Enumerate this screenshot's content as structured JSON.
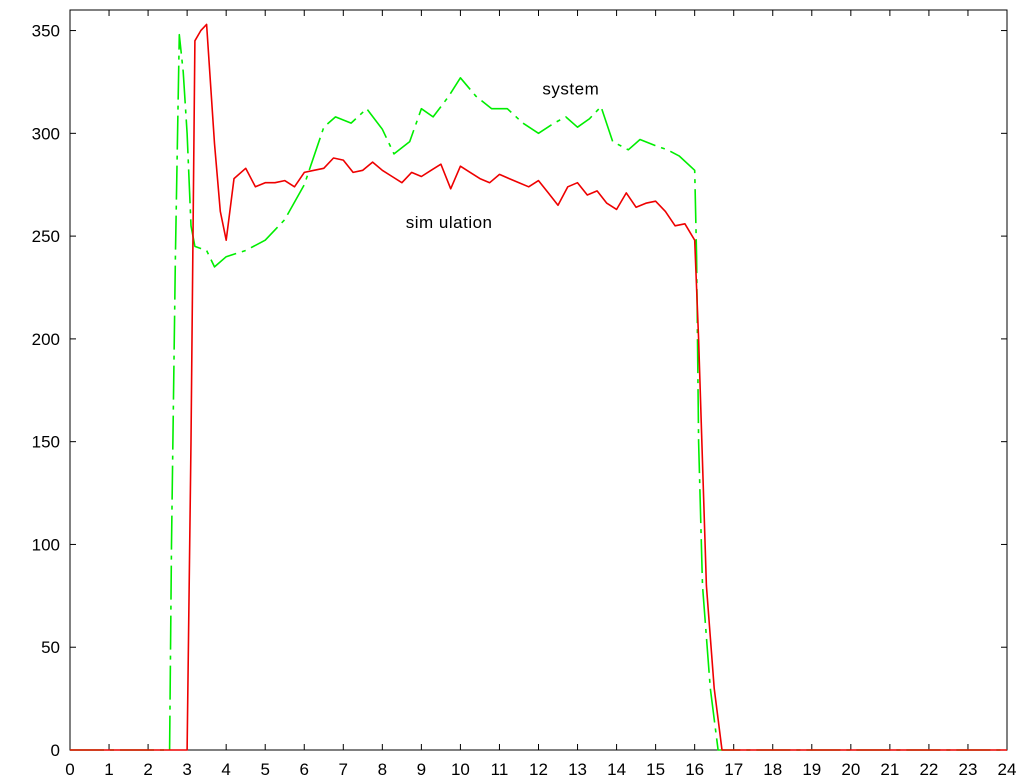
{
  "chart_data": {
    "type": "line",
    "title": "",
    "xlabel": "",
    "ylabel": "",
    "xlim": [
      0,
      24
    ],
    "ylim": [
      0,
      360
    ],
    "xticks": [
      0,
      1,
      2,
      3,
      4,
      5,
      6,
      7,
      8,
      9,
      10,
      11,
      12,
      13,
      14,
      15,
      16,
      17,
      18,
      19,
      20,
      21,
      22,
      23,
      24
    ],
    "yticks": [
      0,
      50,
      100,
      150,
      200,
      250,
      300,
      350
    ],
    "grid": false,
    "legend": "none",
    "annotations": [
      {
        "text": "system",
        "series": "system",
        "x": 12.1,
        "y": 319
      },
      {
        "text": "sim ulation",
        "series": "simulation",
        "x": 8.6,
        "y": 254
      }
    ],
    "series": [
      {
        "name": "system",
        "color": "#00ee00",
        "dash": "dash-dot",
        "points": [
          [
            0,
            0
          ],
          [
            2.4,
            0
          ],
          [
            2.55,
            0
          ],
          [
            2.6,
            100
          ],
          [
            2.7,
            240
          ],
          [
            2.8,
            348
          ],
          [
            2.9,
            330
          ],
          [
            3.0,
            300
          ],
          [
            3.1,
            255
          ],
          [
            3.2,
            245
          ],
          [
            3.5,
            243
          ],
          [
            3.7,
            235
          ],
          [
            4.0,
            240
          ],
          [
            4.5,
            243
          ],
          [
            5.0,
            248
          ],
          [
            5.5,
            258
          ],
          [
            6.0,
            275
          ],
          [
            6.5,
            303
          ],
          [
            6.8,
            308
          ],
          [
            7.2,
            305
          ],
          [
            7.6,
            312
          ],
          [
            8.0,
            302
          ],
          [
            8.3,
            290
          ],
          [
            8.7,
            296
          ],
          [
            9.0,
            312
          ],
          [
            9.3,
            308
          ],
          [
            9.7,
            318
          ],
          [
            10.0,
            327
          ],
          [
            10.4,
            318
          ],
          [
            10.8,
            312
          ],
          [
            11.2,
            312
          ],
          [
            11.6,
            305
          ],
          [
            12.0,
            300
          ],
          [
            12.4,
            305
          ],
          [
            12.7,
            308
          ],
          [
            13.0,
            303
          ],
          [
            13.3,
            307
          ],
          [
            13.6,
            313
          ],
          [
            13.9,
            296
          ],
          [
            14.3,
            292
          ],
          [
            14.6,
            297
          ],
          [
            15.0,
            294
          ],
          [
            15.3,
            292
          ],
          [
            15.6,
            289
          ],
          [
            16.0,
            282
          ],
          [
            16.05,
            240
          ],
          [
            16.1,
            150
          ],
          [
            16.2,
            80
          ],
          [
            16.4,
            30
          ],
          [
            16.6,
            0
          ],
          [
            24,
            0
          ]
        ]
      },
      {
        "name": "simulation",
        "color": "#ee0000",
        "dash": "solid",
        "points": [
          [
            0,
            0
          ],
          [
            2.9,
            0
          ],
          [
            3.0,
            0
          ],
          [
            3.1,
            150
          ],
          [
            3.2,
            345
          ],
          [
            3.35,
            350
          ],
          [
            3.5,
            353
          ],
          [
            3.7,
            295
          ],
          [
            3.85,
            262
          ],
          [
            4.0,
            248
          ],
          [
            4.2,
            278
          ],
          [
            4.5,
            283
          ],
          [
            4.75,
            274
          ],
          [
            5.0,
            276
          ],
          [
            5.25,
            276
          ],
          [
            5.5,
            277
          ],
          [
            5.75,
            274
          ],
          [
            6.0,
            281
          ],
          [
            6.25,
            282
          ],
          [
            6.5,
            283
          ],
          [
            6.75,
            288
          ],
          [
            7.0,
            287
          ],
          [
            7.25,
            281
          ],
          [
            7.5,
            282
          ],
          [
            7.75,
            286
          ],
          [
            8.0,
            282
          ],
          [
            8.25,
            279
          ],
          [
            8.5,
            276
          ],
          [
            8.75,
            281
          ],
          [
            9.0,
            279
          ],
          [
            9.25,
            282
          ],
          [
            9.5,
            285
          ],
          [
            9.75,
            273
          ],
          [
            10.0,
            284
          ],
          [
            10.25,
            281
          ],
          [
            10.5,
            278
          ],
          [
            10.75,
            276
          ],
          [
            11.0,
            280
          ],
          [
            11.25,
            278
          ],
          [
            11.5,
            276
          ],
          [
            11.75,
            274
          ],
          [
            12.0,
            277
          ],
          [
            12.25,
            271
          ],
          [
            12.5,
            265
          ],
          [
            12.75,
            274
          ],
          [
            13.0,
            276
          ],
          [
            13.25,
            270
          ],
          [
            13.5,
            272
          ],
          [
            13.75,
            266
          ],
          [
            14.0,
            263
          ],
          [
            14.25,
            271
          ],
          [
            14.5,
            264
          ],
          [
            14.75,
            266
          ],
          [
            15.0,
            267
          ],
          [
            15.25,
            262
          ],
          [
            15.5,
            255
          ],
          [
            15.75,
            256
          ],
          [
            16.0,
            248
          ],
          [
            16.1,
            200
          ],
          [
            16.3,
            80
          ],
          [
            16.5,
            30
          ],
          [
            16.7,
            0
          ],
          [
            24,
            0
          ]
        ]
      }
    ]
  }
}
